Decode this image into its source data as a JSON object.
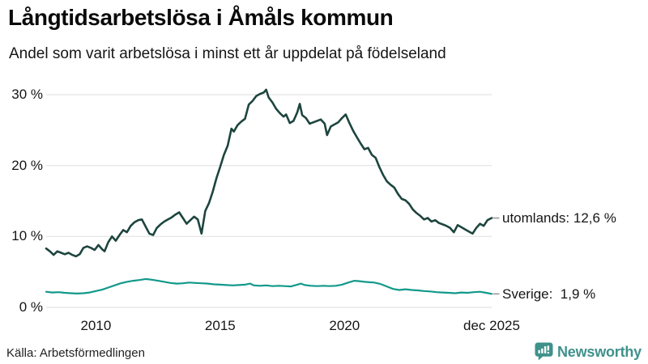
{
  "header": {
    "title": "Långtidsarbetslösa i Åmåls kommun",
    "subtitle": "Andel som varit arbetslösa i minst ett år uppdelat på födelseland"
  },
  "chart_data": {
    "type": "line",
    "title": "Långtidsarbetslösa i Åmåls kommun",
    "unit": "%",
    "grid": true,
    "grid_color": "#e3e3e3",
    "connector_color": "#999999",
    "ylim": [
      0,
      31
    ],
    "x_range": [
      2008.0,
      2025.92
    ],
    "yticks": [
      {
        "label": "30 %",
        "value": 30
      },
      {
        "label": "20 %",
        "value": 20
      },
      {
        "label": "10 %",
        "value": 10
      },
      {
        "label": "0 %",
        "value": 0
      }
    ],
    "xticks": [
      {
        "label": "2010",
        "year": 2010
      },
      {
        "label": "2015",
        "year": 2015
      },
      {
        "label": "2020",
        "year": 2020
      },
      {
        "label": "dec 2025",
        "year": 2025.92
      }
    ],
    "series": [
      {
        "name": "utomlands",
        "color": "#1d453e",
        "end_label": "utomlands: 12,6 %",
        "end_value": 12.6,
        "points": [
          [
            2008.0,
            8.3
          ],
          [
            2008.15,
            7.9
          ],
          [
            2008.3,
            7.4
          ],
          [
            2008.45,
            7.9
          ],
          [
            2008.6,
            7.7
          ],
          [
            2008.75,
            7.5
          ],
          [
            2008.9,
            7.7
          ],
          [
            2009.05,
            7.4
          ],
          [
            2009.2,
            7.2
          ],
          [
            2009.35,
            7.5
          ],
          [
            2009.5,
            8.4
          ],
          [
            2009.65,
            8.6
          ],
          [
            2009.8,
            8.4
          ],
          [
            2009.95,
            8.1
          ],
          [
            2010.1,
            8.8
          ],
          [
            2010.25,
            8.2
          ],
          [
            2010.35,
            7.9
          ],
          [
            2010.5,
            9.2
          ],
          [
            2010.65,
            10.0
          ],
          [
            2010.8,
            9.4
          ],
          [
            2010.95,
            10.2
          ],
          [
            2011.1,
            10.9
          ],
          [
            2011.25,
            10.6
          ],
          [
            2011.4,
            11.5
          ],
          [
            2011.55,
            12.0
          ],
          [
            2011.7,
            12.3
          ],
          [
            2011.85,
            12.4
          ],
          [
            2012.0,
            11.4
          ],
          [
            2012.15,
            10.4
          ],
          [
            2012.3,
            10.2
          ],
          [
            2012.45,
            11.2
          ],
          [
            2012.6,
            11.7
          ],
          [
            2012.75,
            12.1
          ],
          [
            2012.9,
            12.4
          ],
          [
            2013.05,
            12.7
          ],
          [
            2013.2,
            13.1
          ],
          [
            2013.35,
            13.4
          ],
          [
            2013.5,
            12.6
          ],
          [
            2013.65,
            11.8
          ],
          [
            2013.8,
            12.3
          ],
          [
            2013.95,
            12.8
          ],
          [
            2014.1,
            12.4
          ],
          [
            2014.25,
            10.4
          ],
          [
            2014.4,
            13.6
          ],
          [
            2014.55,
            14.7
          ],
          [
            2014.7,
            16.3
          ],
          [
            2014.85,
            18.2
          ],
          [
            2015.0,
            19.8
          ],
          [
            2015.15,
            21.5
          ],
          [
            2015.3,
            22.8
          ],
          [
            2015.45,
            25.2
          ],
          [
            2015.55,
            24.8
          ],
          [
            2015.7,
            25.7
          ],
          [
            2015.85,
            26.2
          ],
          [
            2016.0,
            26.6
          ],
          [
            2016.15,
            28.6
          ],
          [
            2016.3,
            29.1
          ],
          [
            2016.45,
            29.8
          ],
          [
            2016.6,
            30.1
          ],
          [
            2016.75,
            30.3
          ],
          [
            2016.85,
            30.7
          ],
          [
            2016.95,
            29.6
          ],
          [
            2017.1,
            28.9
          ],
          [
            2017.25,
            28.0
          ],
          [
            2017.4,
            27.4
          ],
          [
            2017.55,
            26.9
          ],
          [
            2017.65,
            27.2
          ],
          [
            2017.8,
            26.0
          ],
          [
            2017.95,
            26.3
          ],
          [
            2018.1,
            27.5
          ],
          [
            2018.2,
            28.7
          ],
          [
            2018.3,
            27.1
          ],
          [
            2018.45,
            26.7
          ],
          [
            2018.6,
            25.9
          ],
          [
            2018.75,
            26.1
          ],
          [
            2018.9,
            26.3
          ],
          [
            2019.05,
            26.5
          ],
          [
            2019.2,
            25.9
          ],
          [
            2019.3,
            24.3
          ],
          [
            2019.45,
            25.5
          ],
          [
            2019.6,
            25.8
          ],
          [
            2019.75,
            26.1
          ],
          [
            2019.9,
            26.7
          ],
          [
            2020.05,
            27.2
          ],
          [
            2020.2,
            26.0
          ],
          [
            2020.35,
            24.9
          ],
          [
            2020.5,
            24.0
          ],
          [
            2020.65,
            23.1
          ],
          [
            2020.8,
            22.3
          ],
          [
            2020.95,
            22.5
          ],
          [
            2021.1,
            21.5
          ],
          [
            2021.25,
            21.1
          ],
          [
            2021.4,
            19.8
          ],
          [
            2021.55,
            18.7
          ],
          [
            2021.7,
            17.8
          ],
          [
            2021.85,
            17.3
          ],
          [
            2022.0,
            16.9
          ],
          [
            2022.15,
            16.0
          ],
          [
            2022.3,
            15.3
          ],
          [
            2022.45,
            15.1
          ],
          [
            2022.6,
            14.6
          ],
          [
            2022.75,
            13.8
          ],
          [
            2022.9,
            13.3
          ],
          [
            2023.05,
            12.9
          ],
          [
            2023.2,
            12.4
          ],
          [
            2023.35,
            12.6
          ],
          [
            2023.5,
            12.1
          ],
          [
            2023.65,
            12.3
          ],
          [
            2023.8,
            11.9
          ],
          [
            2023.95,
            11.7
          ],
          [
            2024.1,
            11.5
          ],
          [
            2024.25,
            11.2
          ],
          [
            2024.4,
            10.6
          ],
          [
            2024.55,
            11.6
          ],
          [
            2024.7,
            11.3
          ],
          [
            2024.85,
            11.0
          ],
          [
            2025.0,
            10.7
          ],
          [
            2025.15,
            10.4
          ],
          [
            2025.3,
            11.2
          ],
          [
            2025.45,
            11.8
          ],
          [
            2025.6,
            11.5
          ],
          [
            2025.75,
            12.3
          ],
          [
            2025.92,
            12.6
          ]
        ]
      },
      {
        "name": "Sverige",
        "color": "#12998a",
        "end_label": "Sverige:  1,9 %",
        "end_value": 1.9,
        "points": [
          [
            2008.0,
            2.2
          ],
          [
            2008.25,
            2.1
          ],
          [
            2008.5,
            2.15
          ],
          [
            2008.75,
            2.05
          ],
          [
            2009.0,
            2.0
          ],
          [
            2009.25,
            1.95
          ],
          [
            2009.5,
            2.0
          ],
          [
            2009.75,
            2.1
          ],
          [
            2010.0,
            2.3
          ],
          [
            2010.25,
            2.5
          ],
          [
            2010.5,
            2.8
          ],
          [
            2010.75,
            3.1
          ],
          [
            2011.0,
            3.4
          ],
          [
            2011.25,
            3.6
          ],
          [
            2011.5,
            3.75
          ],
          [
            2011.75,
            3.85
          ],
          [
            2012.0,
            4.0
          ],
          [
            2012.25,
            3.9
          ],
          [
            2012.5,
            3.75
          ],
          [
            2012.75,
            3.6
          ],
          [
            2013.0,
            3.45
          ],
          [
            2013.25,
            3.35
          ],
          [
            2013.5,
            3.4
          ],
          [
            2013.75,
            3.5
          ],
          [
            2014.0,
            3.45
          ],
          [
            2014.25,
            3.4
          ],
          [
            2014.5,
            3.35
          ],
          [
            2014.75,
            3.25
          ],
          [
            2015.0,
            3.2
          ],
          [
            2015.25,
            3.15
          ],
          [
            2015.5,
            3.1
          ],
          [
            2015.75,
            3.15
          ],
          [
            2016.0,
            3.2
          ],
          [
            2016.2,
            3.35
          ],
          [
            2016.35,
            3.1
          ],
          [
            2016.6,
            3.05
          ],
          [
            2016.85,
            3.1
          ],
          [
            2017.1,
            3.0
          ],
          [
            2017.35,
            3.05
          ],
          [
            2017.6,
            3.0
          ],
          [
            2017.85,
            2.95
          ],
          [
            2018.1,
            3.2
          ],
          [
            2018.25,
            3.35
          ],
          [
            2018.4,
            3.15
          ],
          [
            2018.65,
            3.05
          ],
          [
            2018.9,
            3.0
          ],
          [
            2019.15,
            3.05
          ],
          [
            2019.4,
            3.0
          ],
          [
            2019.65,
            3.05
          ],
          [
            2019.9,
            3.2
          ],
          [
            2020.15,
            3.5
          ],
          [
            2020.4,
            3.75
          ],
          [
            2020.6,
            3.7
          ],
          [
            2020.8,
            3.6
          ],
          [
            2021.0,
            3.55
          ],
          [
            2021.2,
            3.5
          ],
          [
            2021.45,
            3.3
          ],
          [
            2021.7,
            2.95
          ],
          [
            2021.95,
            2.6
          ],
          [
            2022.2,
            2.45
          ],
          [
            2022.45,
            2.55
          ],
          [
            2022.7,
            2.45
          ],
          [
            2022.95,
            2.4
          ],
          [
            2023.2,
            2.3
          ],
          [
            2023.45,
            2.25
          ],
          [
            2023.7,
            2.15
          ],
          [
            2023.95,
            2.1
          ],
          [
            2024.2,
            2.05
          ],
          [
            2024.45,
            2.0
          ],
          [
            2024.7,
            2.1
          ],
          [
            2024.95,
            2.05
          ],
          [
            2025.2,
            2.15
          ],
          [
            2025.45,
            2.2
          ],
          [
            2025.7,
            2.05
          ],
          [
            2025.92,
            1.9
          ]
        ]
      }
    ]
  },
  "footer": {
    "source": "Källa: Arbetsförmedlingen",
    "brand": "Newsworthy",
    "brand_color": "#3f918b"
  }
}
